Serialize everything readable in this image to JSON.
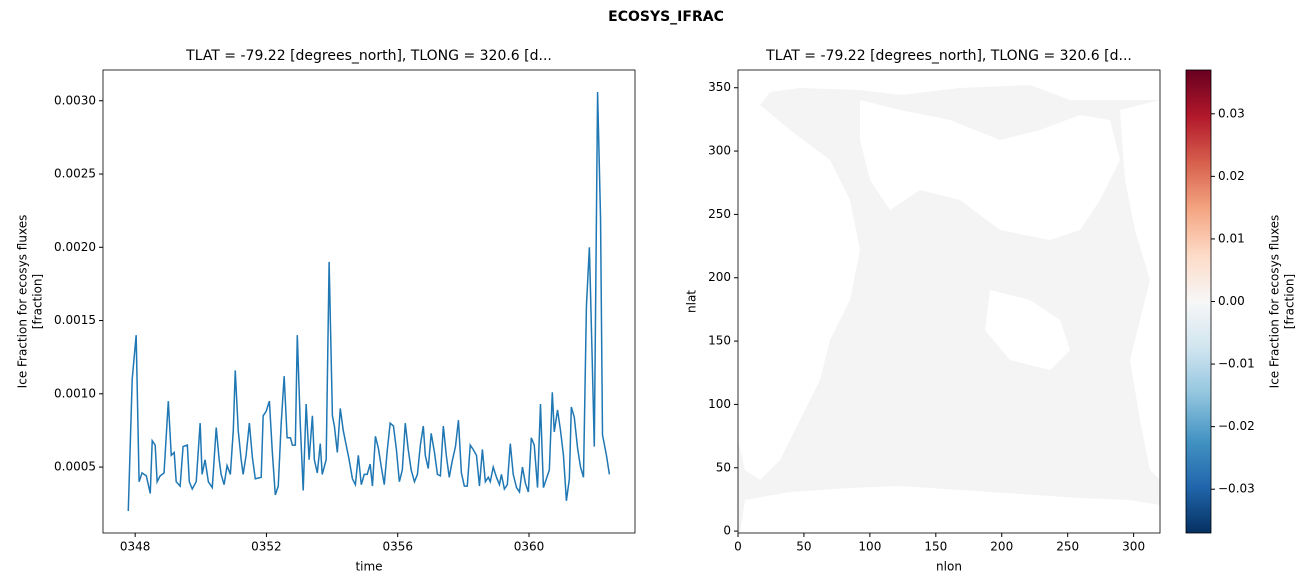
{
  "title": "ECOSYS_IFRAC",
  "chart_data": [
    {
      "type": "line",
      "title": "TLAT = -79.22 [degrees_north], TLONG = 320.6 [d...",
      "xlabel": "time",
      "ylabel": [
        "Ice Fraction for ecosys fluxes",
        "[fraction]"
      ],
      "color": "#1f77b4",
      "xlim": [
        347.02,
        363.23
      ],
      "ylim": [
        5e-05,
        0.00321
      ],
      "xticks": [
        {
          "value": 348,
          "label": "0348"
        },
        {
          "value": 352,
          "label": "0352"
        },
        {
          "value": 356,
          "label": "0356"
        },
        {
          "value": 360,
          "label": "0360"
        }
      ],
      "yticks": [
        0.0005,
        {
          "value": 0.001,
          "label": "0.0010"
        },
        0.0015,
        {
          "value": 0.002,
          "label": "0.0020"
        },
        0.0025,
        {
          "value": 0.003,
          "label": "0.0030"
        }
      ],
      "x": [
        347.79,
        347.91,
        348.03,
        348.12,
        348.21,
        348.34,
        348.46,
        348.52,
        348.61,
        348.67,
        348.76,
        348.88,
        349.01,
        349.1,
        349.19,
        349.25,
        349.37,
        349.46,
        349.59,
        349.65,
        349.74,
        349.86,
        349.98,
        350.04,
        350.13,
        350.23,
        350.35,
        350.47,
        350.56,
        350.62,
        350.71,
        350.8,
        350.9,
        350.99,
        351.05,
        351.14,
        351.23,
        351.29,
        351.38,
        351.48,
        351.57,
        351.66,
        351.84,
        351.9,
        351.99,
        352.09,
        352.18,
        352.27,
        352.36,
        352.45,
        352.54,
        352.63,
        352.73,
        352.79,
        352.88,
        352.94,
        353.03,
        353.12,
        353.21,
        353.3,
        353.4,
        353.46,
        353.55,
        353.64,
        353.7,
        353.82,
        353.91,
        354.01,
        354.07,
        354.16,
        354.25,
        354.34,
        354.43,
        354.52,
        354.62,
        354.71,
        354.8,
        354.89,
        354.98,
        355.07,
        355.16,
        355.23,
        355.32,
        355.41,
        355.5,
        355.59,
        355.68,
        355.77,
        355.87,
        355.96,
        356.05,
        356.14,
        356.23,
        356.32,
        356.41,
        356.51,
        356.6,
        356.69,
        356.78,
        356.84,
        356.93,
        357.02,
        357.12,
        357.21,
        357.3,
        357.39,
        357.48,
        357.57,
        357.66,
        357.76,
        357.85,
        357.94,
        358.03,
        358.12,
        358.21,
        358.3,
        358.4,
        358.49,
        358.58,
        358.67,
        358.76,
        358.82,
        358.91,
        359.01,
        359.1,
        359.16,
        359.25,
        359.34,
        359.43,
        359.52,
        359.62,
        359.71,
        359.8,
        359.89,
        359.98,
        360.07,
        360.16,
        360.26,
        360.35,
        360.44,
        360.53,
        360.62,
        360.71,
        360.77,
        360.87,
        360.96,
        361.05,
        361.14,
        361.23,
        361.29,
        361.38,
        361.48,
        361.57,
        361.66,
        361.75,
        361.84,
        361.93,
        361.99,
        362.09,
        362.18,
        362.24,
        362.36,
        362.45
      ],
      "values": [
        0.0002,
        0.0011,
        0.0014,
        0.0004,
        0.00046,
        0.00044,
        0.00032,
        0.00068,
        0.00065,
        0.0004,
        0.00044,
        0.00046,
        0.00095,
        0.00058,
        0.0006,
        0.0004,
        0.00037,
        0.00064,
        0.00065,
        0.0004,
        0.00035,
        0.0004,
        0.0008,
        0.00045,
        0.00055,
        0.0004,
        0.00036,
        0.00077,
        0.00055,
        0.00045,
        0.00038,
        0.00051,
        0.00045,
        0.00075,
        0.00116,
        0.00075,
        0.00055,
        0.00045,
        0.00058,
        0.0008,
        0.00057,
        0.00042,
        0.00043,
        0.00085,
        0.00088,
        0.00095,
        0.0006,
        0.00031,
        0.00037,
        0.0008,
        0.00112,
        0.0007,
        0.0007,
        0.00065,
        0.00065,
        0.0014,
        0.0008,
        0.00034,
        0.00093,
        0.00055,
        0.00085,
        0.00055,
        0.00046,
        0.00066,
        0.00045,
        0.00055,
        0.0019,
        0.00085,
        0.00078,
        0.0006,
        0.0009,
        0.00075,
        0.00065,
        0.00055,
        0.00042,
        0.00038,
        0.00058,
        0.00038,
        0.00045,
        0.00045,
        0.00052,
        0.00037,
        0.00071,
        0.00063,
        0.0005,
        0.00038,
        0.00061,
        0.0008,
        0.00078,
        0.00062,
        0.0004,
        0.00048,
        0.0008,
        0.00062,
        0.00048,
        0.0004,
        0.00045,
        0.00065,
        0.00078,
        0.00058,
        0.00049,
        0.00073,
        0.0006,
        0.00045,
        0.00044,
        0.00078,
        0.00058,
        0.00043,
        0.00054,
        0.00064,
        0.00082,
        0.00046,
        0.00037,
        0.00037,
        0.00065,
        0.00062,
        0.00058,
        0.00037,
        0.00062,
        0.0004,
        0.00043,
        0.0004,
        0.0005,
        0.00043,
        0.00038,
        0.00045,
        0.00035,
        0.00038,
        0.00066,
        0.00045,
        0.00036,
        0.00033,
        0.0005,
        0.00039,
        0.00033,
        0.0007,
        0.00065,
        0.00036,
        0.00093,
        0.00036,
        0.00042,
        0.00048,
        0.00101,
        0.00074,
        0.00089,
        0.00075,
        0.00058,
        0.00027,
        0.00042,
        0.00091,
        0.00084,
        0.00063,
        0.0005,
        0.00043,
        0.0016,
        0.002,
        0.0012,
        0.00064,
        0.00306,
        0.0022,
        0.00072,
        0.00058,
        0.00045
      ]
    },
    {
      "type": "heatmap",
      "title": "TLAT = -79.22 [degrees_north], TLONG = 320.6 [d...",
      "xlabel": "nlon",
      "ylabel": [
        "nlat"
      ],
      "xlim": [
        0,
        320
      ],
      "ylim": [
        -1.5,
        364
      ],
      "xticks": [
        0,
        50,
        100,
        150,
        200,
        250,
        300
      ],
      "yticks": [
        0,
        50,
        100,
        150,
        200,
        250,
        300,
        350
      ],
      "colorbar": {
        "label": [
          "Ice Fraction for ecosys fluxes",
          "[fraction]"
        ],
        "clim": [
          -0.037,
          0.037
        ],
        "colors": [
          "#053061",
          "#2166ac",
          "#4393c3",
          "#92c5de",
          "#d1e5f0",
          "#f7f7f7",
          "#fddbc7",
          "#f4a582",
          "#d6604d",
          "#b2182b",
          "#67001f"
        ],
        "ticks": [
          {
            "value": -0.03,
            "label": "−0.03"
          },
          {
            "value": -0.02,
            "label": "−0.02"
          },
          {
            "value": -0.01,
            "label": "−0.01"
          },
          {
            "value": 0,
            "label": "0.00"
          },
          0.01,
          0.02,
          0.03
        ]
      }
    }
  ]
}
